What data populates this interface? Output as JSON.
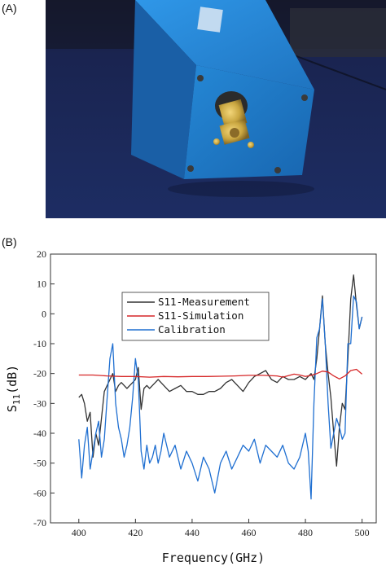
{
  "panels": {
    "a_label": "(A)",
    "b_label": "(B)"
  },
  "photo": {
    "subject": "blue aluminum enclosure with gold SMA connector on blue table",
    "colors": {
      "table": "#1c2c5a",
      "box_front": "#1f7cc8",
      "box_top": "#2a8ee0",
      "connector": "#c9a640",
      "background": "#1a1f3a"
    }
  },
  "chart_data": {
    "type": "line",
    "title": "",
    "xlabel": "Frequency(GHz)",
    "ylabel_main": "S",
    "ylabel_sub": "11",
    "ylabel_unit": "(dB)",
    "xlim": [
      390,
      505
    ],
    "ylim": [
      -70,
      20
    ],
    "xticks": [
      400,
      420,
      440,
      460,
      480,
      500
    ],
    "yticks": [
      20,
      10,
      0,
      -10,
      -20,
      -30,
      -40,
      -50,
      -60,
      -70
    ],
    "grid": false,
    "legend_position": "upper-center",
    "series": [
      {
        "name": "S11-Measurement",
        "color": "#333333",
        "x": [
          400,
          401,
          402,
          403,
          404,
          405,
          406,
          407,
          408,
          409,
          410,
          411,
          412,
          413,
          414,
          415,
          416,
          417,
          418,
          419,
          420,
          421,
          422,
          423,
          424,
          425,
          426,
          427,
          428,
          429,
          430,
          432,
          434,
          436,
          438,
          440,
          442,
          444,
          446,
          448,
          450,
          452,
          454,
          456,
          458,
          460,
          462,
          464,
          466,
          468,
          470,
          472,
          474,
          476,
          478,
          480,
          481,
          482,
          483,
          484,
          485,
          486,
          487,
          488,
          489,
          490,
          491,
          492,
          493,
          494,
          495,
          496,
          497,
          498,
          499,
          500
        ],
        "values": [
          -28,
          -27,
          -30,
          -36,
          -33,
          -48,
          -40,
          -44,
          -35,
          -26,
          -24,
          -22,
          -20,
          -26,
          -24,
          -23,
          -24,
          -25,
          -24,
          -23,
          -22,
          -18,
          -32,
          -25,
          -24,
          -25,
          -24,
          -23,
          -22,
          -23,
          -24,
          -26,
          -25,
          -24,
          -26,
          -26,
          -27,
          -27,
          -26,
          -26,
          -25,
          -23,
          -22,
          -24,
          -26,
          -23,
          -21,
          -20,
          -19,
          -22,
          -23,
          -21,
          -22,
          -22,
          -21,
          -22,
          -21,
          -20,
          -22,
          -15,
          -5,
          6,
          -10,
          -20,
          -28,
          -40,
          -51,
          -38,
          -30,
          -32,
          -15,
          5,
          13,
          3,
          -5,
          -1
        ]
      },
      {
        "name": "S11-Simulation",
        "color": "#d62728",
        "x": [
          400,
          405,
          410,
          415,
          420,
          425,
          430,
          435,
          440,
          445,
          450,
          455,
          460,
          465,
          470,
          472,
          474,
          476,
          478,
          480,
          482,
          484,
          486,
          488,
          490,
          492,
          494,
          496,
          498,
          500
        ],
        "values": [
          -20.5,
          -20.5,
          -20.8,
          -21.0,
          -21.0,
          -21.2,
          -21.0,
          -21.1,
          -21.0,
          -21.0,
          -20.9,
          -20.8,
          -20.6,
          -20.6,
          -20.8,
          -21.2,
          -20.7,
          -20.2,
          -20.5,
          -21.0,
          -20.6,
          -20.0,
          -19.2,
          -19.5,
          -20.8,
          -21.8,
          -20.8,
          -19.0,
          -18.6,
          -20.2
        ]
      },
      {
        "name": "Calibration",
        "color": "#1f6fd1",
        "x": [
          400,
          401,
          402,
          403,
          404,
          405,
          406,
          407,
          408,
          409,
          410,
          411,
          412,
          413,
          414,
          415,
          416,
          417,
          418,
          419,
          420,
          421,
          422,
          423,
          424,
          425,
          426,
          427,
          428,
          429,
          430,
          432,
          434,
          436,
          438,
          440,
          442,
          444,
          446,
          448,
          450,
          452,
          454,
          456,
          458,
          460,
          462,
          464,
          466,
          468,
          470,
          472,
          474,
          476,
          478,
          480,
          481,
          482,
          483,
          484,
          485,
          486,
          487,
          488,
          489,
          490,
          491,
          492,
          493,
          494,
          495,
          496,
          497,
          498,
          499,
          500
        ],
        "values": [
          -42,
          -55,
          -44,
          -38,
          -52,
          -46,
          -40,
          -36,
          -48,
          -42,
          -28,
          -15,
          -10,
          -30,
          -38,
          -42,
          -48,
          -44,
          -38,
          -28,
          -15,
          -22,
          -46,
          -52,
          -44,
          -50,
          -48,
          -44,
          -50,
          -46,
          -40,
          -48,
          -44,
          -52,
          -46,
          -50,
          -56,
          -48,
          -52,
          -60,
          -50,
          -46,
          -52,
          -48,
          -44,
          -46,
          -42,
          -50,
          -44,
          -46,
          -48,
          -44,
          -50,
          -52,
          -48,
          -40,
          -46,
          -62,
          -30,
          -8,
          -5,
          5,
          -10,
          -30,
          -45,
          -40,
          -35,
          -38,
          -42,
          -40,
          -10,
          -10,
          6,
          4,
          -5,
          -1
        ]
      }
    ]
  }
}
